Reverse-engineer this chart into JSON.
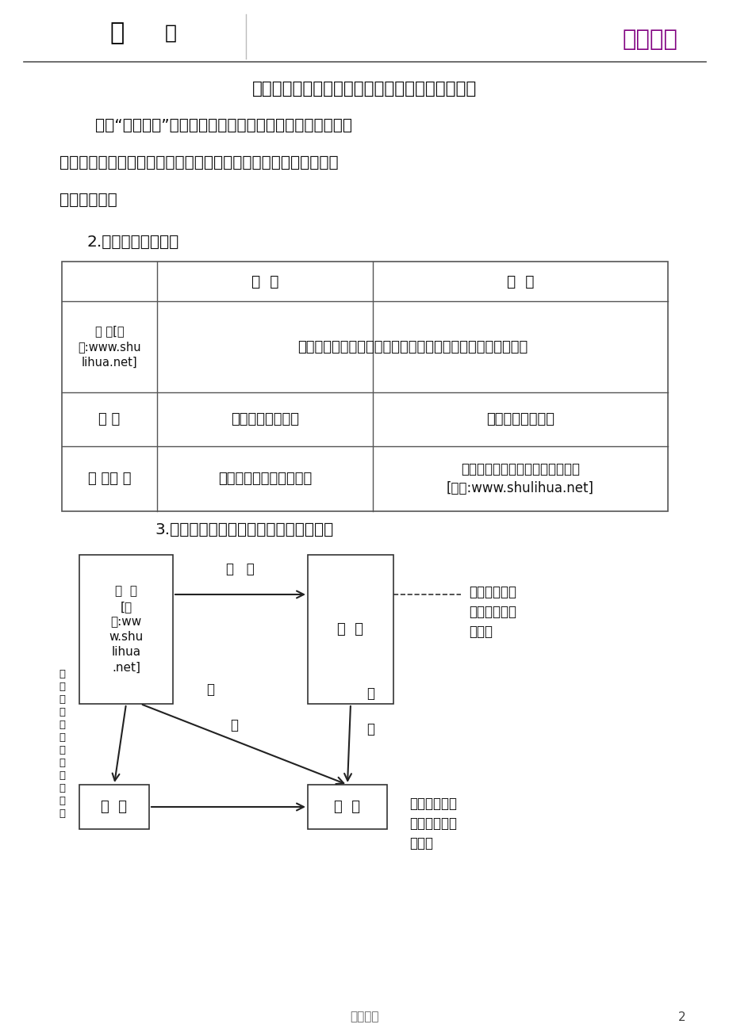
{
  "bg_color": "#ffffff",
  "title_text": "原子的核电荷数（即核内质子数）决定元素的种类",
  "note_line1": "注：“一类原子”指的是其核电荷数相同而核内所含中子数并",
  "note_line2": "不一定相同的一类原子，之所以把它们归成一类，是因为它们的化",
  "note_line3": "学性质相同。",
  "section2_title": "2.元素与原子的比较",
  "th0": "",
  "th1": "元  素",
  "th2": "原  子",
  "r0c0": "联 系[来\n源:www.shu\nlihua.net]",
  "r0c1": "元素是具有相同核电荷数（即核内质子数）的一类原子的总称",
  "r1c0": "区 别",
  "r1c1": "只讲种类不讲个数",
  "r1c2": "既讲种类又讲个数",
  "r2c0": "使 用范 围",
  "r2c1": "用于描述宏观物质的组成",
  "r2c2": "用于描述微观微粒（分子）的结构\n[来源:www.shulihua.net]",
  "section3_title": "3.物质、元素、分子、原子的区别与联系",
  "atom_label": "原  子\n[来\n源:ww\nw.shu\nlihua\n.net]",
  "mol_label": "分  子",
  "elem_label": "元  素",
  "matter_label": "物  质",
  "arrow_gucheng": "构   成",
  "diag_gu1": "构",
  "diag_cheng1": "成",
  "diag_gu2": "构",
  "diag_cheng2": "成",
  "right_note1": "微观粒子（既\n讲种类，又讲\n个数）",
  "right_note2": "宏观概念（只\n讲种类，不讲\n个数）",
  "left_note": "相\n一\n类\n原\n子\n总\n称\n同\n核\n电\n荷\n数",
  "footer_text": "实用文档",
  "page_num": "2",
  "logo_text": "学海无涯",
  "logo_color": "#800080"
}
